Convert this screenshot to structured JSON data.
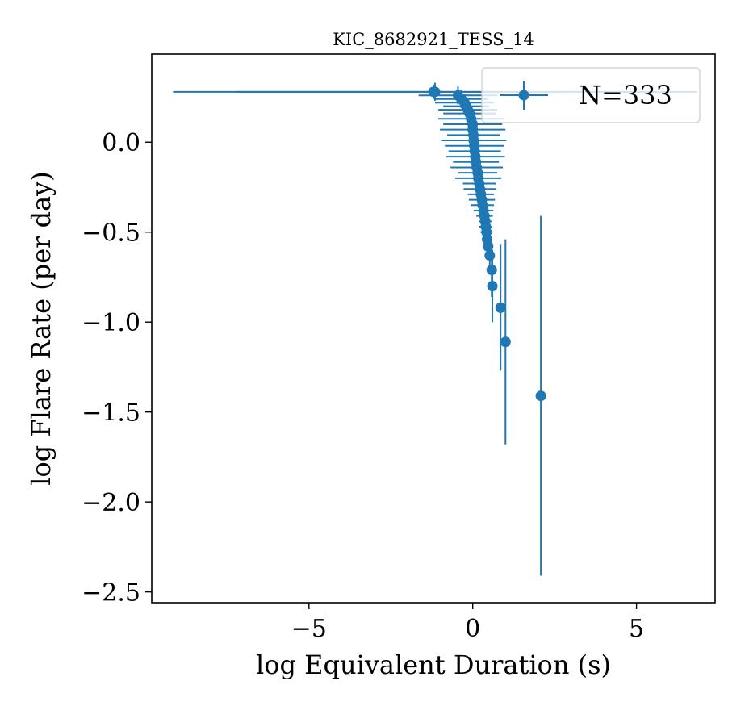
{
  "chart_data": {
    "type": "scatter",
    "title": "KIC_8682921_TESS_14",
    "xlabel": "log Equivalent Duration (s)",
    "ylabel": "log Flare Rate (per day)",
    "xlim": [
      -9.8,
      7.4
    ],
    "ylim": [
      -2.56,
      0.49
    ],
    "xticks": [
      -5,
      0,
      5
    ],
    "xtick_labels": [
      "−5",
      "0",
      "5"
    ],
    "yticks": [
      0.0,
      -0.5,
      -1.0,
      -1.5,
      -2.0,
      -2.5
    ],
    "ytick_labels": [
      "0.0",
      "−0.5",
      "−1.0",
      "−1.5",
      "−2.0",
      "−2.5"
    ],
    "grid": false,
    "legend": {
      "position": "top-right",
      "entries": [
        "N=333"
      ]
    },
    "color": "#1f77b4",
    "series": [
      {
        "name": "N=333",
        "points": [
          {
            "x": -1.15,
            "y": 0.28,
            "xerr": [
              8.0,
              8.0
            ],
            "yerr": [
              0.05,
              0.05
            ]
          },
          {
            "x": -1.2,
            "y": 0.28,
            "xerr": [
              6.0,
              6.0
            ],
            "yerr": [
              0.04,
              0.04
            ]
          },
          {
            "x": -0.45,
            "y": 0.26,
            "xerr": [
              1.2,
              1.2
            ],
            "yerr": [
              0.05,
              0.05
            ]
          },
          {
            "x": -0.35,
            "y": 0.24,
            "xerr": [
              0.8,
              0.8
            ],
            "yerr": [
              0.05,
              0.05
            ]
          },
          {
            "x": -0.25,
            "y": 0.22,
            "xerr": [
              0.9,
              0.9
            ],
            "yerr": [
              0.05,
              0.05
            ]
          },
          {
            "x": -0.2,
            "y": 0.2,
            "xerr": [
              0.7,
              0.7
            ],
            "yerr": [
              0.05,
              0.05
            ]
          },
          {
            "x": -0.15,
            "y": 0.18,
            "xerr": [
              0.9,
              0.9
            ],
            "yerr": [
              0.05,
              0.05
            ]
          },
          {
            "x": -0.1,
            "y": 0.16,
            "xerr": [
              0.8,
              0.8
            ],
            "yerr": [
              0.05,
              0.05
            ]
          },
          {
            "x": -0.05,
            "y": 0.13,
            "xerr": [
              1.0,
              1.0
            ],
            "yerr": [
              0.05,
              0.05
            ]
          },
          {
            "x": 0.0,
            "y": 0.1,
            "xerr": [
              0.9,
              0.9
            ],
            "yerr": [
              0.05,
              0.05
            ]
          },
          {
            "x": 0.0,
            "y": 0.07,
            "xerr": [
              1.0,
              1.0
            ],
            "yerr": [
              0.05,
              0.05
            ]
          },
          {
            "x": 0.02,
            "y": 0.04,
            "xerr": [
              0.8,
              0.8
            ],
            "yerr": [
              0.05,
              0.05
            ]
          },
          {
            "x": 0.03,
            "y": 0.01,
            "xerr": [
              1.0,
              1.0
            ],
            "yerr": [
              0.05,
              0.05
            ]
          },
          {
            "x": 0.05,
            "y": -0.02,
            "xerr": [
              0.9,
              0.9
            ],
            "yerr": [
              0.05,
              0.05
            ]
          },
          {
            "x": 0.06,
            "y": -0.05,
            "xerr": [
              0.8,
              0.8
            ],
            "yerr": [
              0.05,
              0.05
            ]
          },
          {
            "x": 0.08,
            "y": -0.08,
            "xerr": [
              0.9,
              0.9
            ],
            "yerr": [
              0.05,
              0.05
            ]
          },
          {
            "x": 0.1,
            "y": -0.11,
            "xerr": [
              0.7,
              0.7
            ],
            "yerr": [
              0.05,
              0.05
            ]
          },
          {
            "x": 0.12,
            "y": -0.14,
            "xerr": [
              0.8,
              0.8
            ],
            "yerr": [
              0.05,
              0.05
            ]
          },
          {
            "x": 0.15,
            "y": -0.17,
            "xerr": [
              0.6,
              0.6
            ],
            "yerr": [
              0.05,
              0.05
            ]
          },
          {
            "x": 0.17,
            "y": -0.2,
            "xerr": [
              0.7,
              0.7
            ],
            "yerr": [
              0.05,
              0.05
            ]
          },
          {
            "x": 0.2,
            "y": -0.23,
            "xerr": [
              0.5,
              0.5
            ],
            "yerr": [
              0.05,
              0.05
            ]
          },
          {
            "x": 0.22,
            "y": -0.26,
            "xerr": [
              0.5,
              0.5
            ],
            "yerr": [
              0.05,
              0.05
            ]
          },
          {
            "x": 0.25,
            "y": -0.29,
            "xerr": [
              0.4,
              0.4
            ],
            "yerr": [
              0.05,
              0.05
            ]
          },
          {
            "x": 0.28,
            "y": -0.32,
            "xerr": [
              0.4,
              0.4
            ],
            "yerr": [
              0.05,
              0.05
            ]
          },
          {
            "x": 0.3,
            "y": -0.35,
            "xerr": [
              0.35,
              0.35
            ],
            "yerr": [
              0.05,
              0.05
            ]
          },
          {
            "x": 0.33,
            "y": -0.38,
            "xerr": [
              0.3,
              0.3
            ],
            "yerr": [
              0.05,
              0.05
            ]
          },
          {
            "x": 0.36,
            "y": -0.41,
            "xerr": [
              0.25,
              0.25
            ],
            "yerr": [
              0.05,
              0.05
            ]
          },
          {
            "x": 0.38,
            "y": -0.44,
            "xerr": [
              0.2,
              0.2
            ],
            "yerr": [
              0.05,
              0.05
            ]
          },
          {
            "x": 0.4,
            "y": -0.47,
            "xerr": [
              0.2,
              0.2
            ],
            "yerr": [
              0.06,
              0.06
            ]
          },
          {
            "x": 0.42,
            "y": -0.5,
            "xerr": [
              0.18,
              0.18
            ],
            "yerr": [
              0.06,
              0.06
            ]
          },
          {
            "x": 0.44,
            "y": -0.54,
            "xerr": [
              0.15,
              0.15
            ],
            "yerr": [
              0.06,
              0.06
            ]
          },
          {
            "x": 0.47,
            "y": -0.58,
            "xerr": [
              0.12,
              0.12
            ],
            "yerr": [
              0.07,
              0.07
            ]
          },
          {
            "x": 0.52,
            "y": -0.63,
            "xerr": [
              0.1,
              0.1
            ],
            "yerr": [
              0.1,
              0.1
            ]
          },
          {
            "x": 0.58,
            "y": -0.71,
            "xerr": [
              0.1,
              0.1
            ],
            "yerr": [
              0.15,
              0.15
            ]
          },
          {
            "x": 0.6,
            "y": -0.8,
            "xerr": [
              0.08,
              0.08
            ],
            "yerr": [
              0.2,
              0.2
            ]
          },
          {
            "x": 0.85,
            "y": -0.92,
            "xerr": [
              0.05,
              0.05
            ],
            "yerr": [
              0.35,
              0.35
            ]
          },
          {
            "x": 1.0,
            "y": -1.11,
            "xerr": [
              0.04,
              0.04
            ],
            "yerr": [
              0.57,
              0.57
            ]
          },
          {
            "x": 2.08,
            "y": -1.41,
            "xerr": [
              0.03,
              0.03
            ],
            "yerr": [
              1.0,
              1.0
            ]
          }
        ]
      }
    ]
  }
}
